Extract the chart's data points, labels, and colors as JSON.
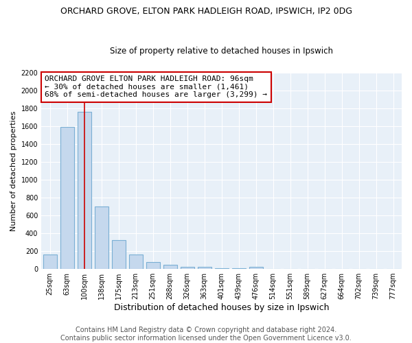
{
  "title": "ORCHARD GROVE, ELTON PARK HADLEIGH ROAD, IPSWICH, IP2 0DG",
  "subtitle": "Size of property relative to detached houses in Ipswich",
  "xlabel": "Distribution of detached houses by size in Ipswich",
  "ylabel": "Number of detached properties",
  "footer_line1": "Contains HM Land Registry data © Crown copyright and database right 2024.",
  "footer_line2": "Contains public sector information licensed under the Open Government Licence v3.0.",
  "categories": [
    "25sqm",
    "63sqm",
    "100sqm",
    "138sqm",
    "175sqm",
    "213sqm",
    "251sqm",
    "288sqm",
    "326sqm",
    "363sqm",
    "401sqm",
    "439sqm",
    "476sqm",
    "514sqm",
    "551sqm",
    "589sqm",
    "627sqm",
    "664sqm",
    "702sqm",
    "739sqm",
    "777sqm"
  ],
  "values": [
    160,
    1590,
    1760,
    700,
    320,
    160,
    80,
    50,
    25,
    20,
    10,
    8,
    20,
    3,
    2,
    1,
    1,
    1,
    1,
    1,
    1
  ],
  "bar_color": "#c5d8ed",
  "bar_edge_color": "#7aafd4",
  "ylim": [
    0,
    2200
  ],
  "yticks": [
    0,
    200,
    400,
    600,
    800,
    1000,
    1200,
    1400,
    1600,
    1800,
    2000,
    2200
  ],
  "property_bar_index": 2,
  "marker_line_color": "#cc0000",
  "annotation_text": "ORCHARD GROVE ELTON PARK HADLEIGH ROAD: 96sqm\n← 30% of detached houses are smaller (1,461)\n68% of semi-detached houses are larger (3,299) →",
  "annotation_box_color": "#cc0000",
  "plot_bg_color": "#e8f0f8",
  "grid_color": "#ffffff",
  "background_color": "#ffffff",
  "title_fontsize": 9,
  "subtitle_fontsize": 8.5,
  "xlabel_fontsize": 9,
  "ylabel_fontsize": 8,
  "tick_fontsize": 7,
  "annotation_fontsize": 8,
  "footer_fontsize": 7
}
